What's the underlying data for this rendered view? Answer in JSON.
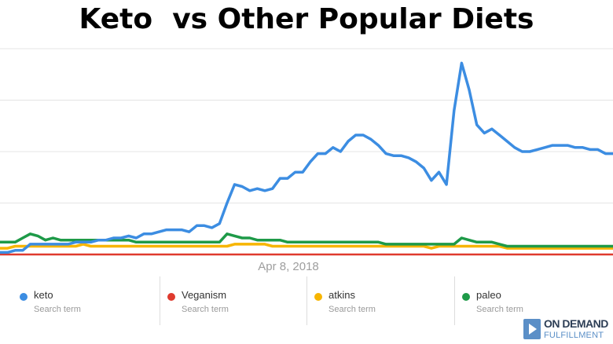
{
  "chart_data": {
    "type": "line",
    "title": "Keto  vs Other Popular Diets",
    "x_tick_label": "Apr 8, 2018",
    "ylim": [
      0,
      100
    ],
    "grid": true,
    "legend_position": "bottom",
    "series": [
      {
        "name": "keto",
        "subtitle": "Search term",
        "color": "#3c8de2",
        "values": [
          1,
          1,
          2,
          2,
          5,
          5,
          5,
          5,
          5,
          5,
          6,
          6,
          6,
          7,
          7,
          8,
          8,
          9,
          8,
          10,
          10,
          11,
          12,
          12,
          12,
          11,
          14,
          14,
          13,
          15,
          25,
          34,
          33,
          31,
          32,
          31,
          32,
          37,
          37,
          40,
          40,
          45,
          49,
          49,
          52,
          50,
          55,
          58,
          58,
          56,
          53,
          49,
          48,
          48,
          47,
          45,
          42,
          36,
          40,
          34,
          70,
          93,
          80,
          63,
          59,
          61,
          58,
          55,
          52,
          50,
          50,
          51,
          52,
          53,
          53,
          53,
          52,
          52,
          51,
          51,
          49,
          49
        ]
      },
      {
        "name": "Veganism",
        "subtitle": "Search term",
        "color": "#df3a2e",
        "values": [
          0,
          0,
          0,
          0,
          0,
          0,
          0,
          0,
          0,
          0,
          0,
          0,
          0,
          0,
          0,
          0,
          0,
          0,
          0,
          0,
          0,
          0,
          0,
          0,
          0,
          0,
          0,
          0,
          0,
          0,
          0,
          0,
          0,
          0,
          0,
          0,
          0,
          0,
          0,
          0,
          0,
          0,
          0,
          0,
          0,
          0,
          0,
          0,
          0,
          0,
          0,
          0,
          0,
          0,
          0,
          0,
          0,
          0,
          0,
          0,
          0,
          0,
          0,
          0,
          0,
          0,
          0,
          0,
          0,
          0,
          0,
          0,
          0,
          0,
          0,
          0,
          0,
          0,
          0,
          0,
          0,
          0
        ]
      },
      {
        "name": "atkins",
        "subtitle": "Search term",
        "color": "#f7b500",
        "values": [
          3,
          3,
          4,
          4,
          4,
          4,
          4,
          4,
          4,
          4,
          4,
          5,
          4,
          4,
          4,
          4,
          4,
          4,
          4,
          4,
          4,
          4,
          4,
          4,
          4,
          4,
          4,
          4,
          4,
          4,
          4,
          5,
          5,
          5,
          5,
          5,
          4,
          4,
          4,
          4,
          4,
          4,
          4,
          4,
          4,
          4,
          4,
          4,
          4,
          4,
          4,
          4,
          4,
          4,
          4,
          4,
          4,
          3,
          4,
          4,
          4,
          4,
          4,
          4,
          4,
          4,
          4,
          3,
          3,
          3,
          3,
          3,
          3,
          3,
          3,
          3,
          3,
          3,
          3,
          3,
          3,
          3
        ]
      },
      {
        "name": "paleo",
        "subtitle": "Search term",
        "color": "#1e9a48",
        "values": [
          6,
          6,
          6,
          8,
          10,
          9,
          7,
          8,
          7,
          7,
          7,
          7,
          7,
          7,
          7,
          7,
          7,
          7,
          6,
          6,
          6,
          6,
          6,
          6,
          6,
          6,
          6,
          6,
          6,
          6,
          10,
          9,
          8,
          8,
          7,
          7,
          7,
          7,
          6,
          6,
          6,
          6,
          6,
          6,
          6,
          6,
          6,
          6,
          6,
          6,
          6,
          5,
          5,
          5,
          5,
          5,
          5,
          5,
          5,
          5,
          5,
          8,
          7,
          6,
          6,
          6,
          5,
          4,
          4,
          4,
          4,
          4,
          4,
          4,
          4,
          4,
          4,
          4,
          4,
          4,
          4,
          4
        ]
      }
    ]
  },
  "legend_subtitle": "Search term",
  "colors": {
    "grid": "#e4e4e4",
    "axis_label": "#9e9e9e"
  },
  "logo": {
    "line1": "ON DEMAND",
    "line2": "FULFILLMENT"
  }
}
